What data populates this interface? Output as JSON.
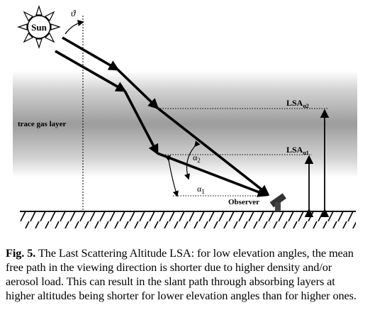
{
  "figure": {
    "sun_label": "Sun",
    "zenith_angle_symbol": "ϑ",
    "layer_label": "trace gas layer",
    "lsa_high_label": "LSA",
    "lsa_high_sub": "α2",
    "lsa_low_label": "LSA",
    "lsa_low_sub": "α1",
    "alpha2_label": "α",
    "alpha2_sub": "2",
    "alpha1_label": "α",
    "alpha1_sub": "1",
    "observer_label": "Observer"
  },
  "caption": {
    "number": "Fig. 5.",
    "text": " The Last Scattering Altitude LSA: for low elevation angles, the mean free path in the viewing direction is shorter due to higher density and/or aerosol load. This can result in the slant path through absorbing layers at higher altitudes being shorter for lower elevation angles than for higher ones."
  }
}
